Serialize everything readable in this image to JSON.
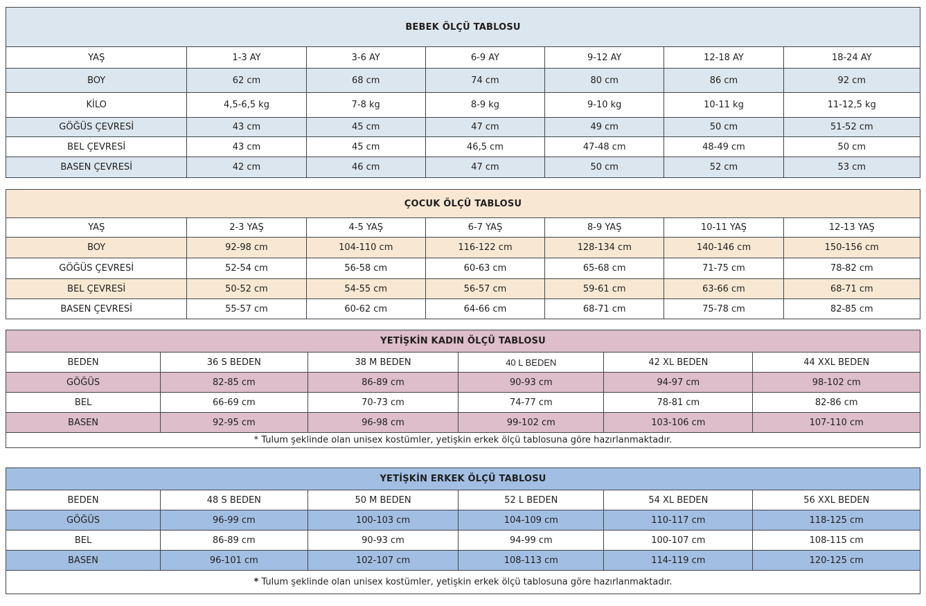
{
  "page": {
    "background": "#ffffff",
    "border_color": "#3f4449",
    "text_color": "#1f1f1f"
  },
  "tables": [
    {
      "id": "bebek",
      "title": "BEBEK ÖLÇÜ TABLOSU",
      "fill": "#dce6ee",
      "rows": [
        [
          "YAŞ",
          "1-3 AY",
          "3-6 AY",
          "6-9 AY",
          "9-12 AY",
          "12-18 AY",
          "18-24 AY"
        ],
        [
          "BOY",
          "62 cm",
          "68 cm",
          "74 cm",
          "80 cm",
          "86 cm",
          "92 cm"
        ],
        [
          "KİLO",
          "4,5-6,5 kg",
          "7-8 kg",
          "8-9 kg",
          "9-10 kg",
          "10-11 kg",
          "11-12,5 kg"
        ],
        [
          "GÖĞÜS ÇEVRESİ",
          "43 cm",
          "45 cm",
          "47 cm",
          "49 cm",
          "50 cm",
          "51-52 cm"
        ],
        [
          "BEL ÇEVRESİ",
          "43 cm",
          "45 cm",
          "46,5 cm",
          "47-48 cm",
          "48-49 cm",
          "50 cm"
        ],
        [
          "BASEN ÇEVRESİ",
          "42 cm",
          "46 cm",
          "47 cm",
          "50 cm",
          "52 cm",
          "53 cm"
        ]
      ]
    },
    {
      "id": "cocuk",
      "title": "ÇOCUK ÖLÇÜ TABLOSU",
      "fill": "#f8e8d3",
      "rows": [
        [
          "YAŞ",
          "2-3 YAŞ",
          "4-5 YAŞ",
          "6-7 YAŞ",
          "8-9 YAŞ",
          "10-11 YAŞ",
          "12-13 YAŞ"
        ],
        [
          "BOY",
          "92-98 cm",
          "104-110 cm",
          "116-122 cm",
          "128-134 cm",
          "140-146 cm",
          "150-156 cm"
        ],
        [
          "GÖĞÜS ÇEVRESİ",
          "52-54 cm",
          "56-58 cm",
          "60-63 cm",
          "65-68 cm",
          "71-75 cm",
          "78-82 cm"
        ],
        [
          "BEL ÇEVRESİ",
          "50-52 cm",
          "54-55 cm",
          "56-57 cm",
          "59-61 cm",
          "63-66 cm",
          "68-71 cm"
        ],
        [
          "BASEN ÇEVRESİ",
          "55-57 cm",
          "60-62 cm",
          "64-66 cm",
          "68-71 cm",
          "75-78 cm",
          "82-85 cm"
        ]
      ]
    },
    {
      "id": "kadin",
      "title": "YETİŞKİN KADIN ÖLÇÜ TABLOSU",
      "fill": "#ddbeca",
      "rows": [
        [
          "BEDEN",
          "36 S BEDEN",
          "38 M BEDEN",
          "40 L BEDEN",
          "42 XL BEDEN",
          "44 XXL BEDEN"
        ],
        [
          "GÖĞÜS",
          "82-85 cm",
          "86-89 cm",
          "90-93 cm",
          "94-97 cm",
          "98-102 cm"
        ],
        [
          "BEL",
          "66-69 cm",
          "70-73 cm",
          "74-77 cm",
          "78-81 cm",
          "82-86 cm"
        ],
        [
          "BASEN",
          "92-95 cm",
          "96-98 cm",
          "99-102 cm",
          "103-106 cm",
          "107-110 cm"
        ]
      ],
      "footnote_marker": "*",
      "footnote": "Tulum şeklinde olan unisex kostümler, yetişkin erkek ölçü tablosuna göre hazırlanmaktadır."
    },
    {
      "id": "erkek",
      "title": "YETİŞKİN ERKEK ÖLÇÜ TABLOSU",
      "fill": "#a2bfe3",
      "rows": [
        [
          "BEDEN",
          "48 S BEDEN",
          "50 M BEDEN",
          "52 L BEDEN",
          "54 XL BEDEN",
          "56 XXL BEDEN"
        ],
        [
          "GÖĞÜS",
          "96-99 cm",
          "100-103 cm",
          "104-109 cm",
          "110-117 cm",
          "118-125 cm"
        ],
        [
          "BEL",
          "86-89 cm",
          "90-93 cm",
          "94-99 cm",
          "100-107 cm",
          "108-115 cm"
        ],
        [
          "BASEN",
          "96-101 cm",
          "102-107 cm",
          "108-113 cm",
          "114-119 cm",
          "120-125 cm"
        ]
      ],
      "footnote_marker": "*",
      "footnote": "Tulum şeklinde olan unisex kostümler, yetişkin erkek ölçü  tablosuna göre hazırlanmaktadır."
    }
  ]
}
